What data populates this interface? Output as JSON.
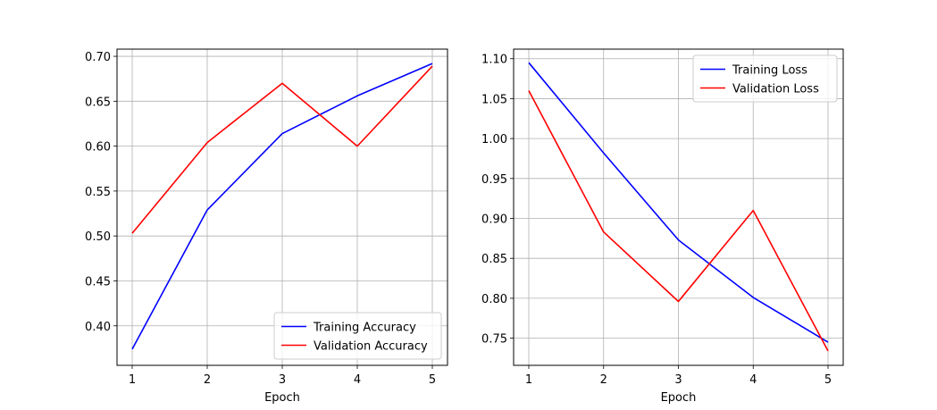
{
  "chart_data": [
    {
      "type": "line",
      "x": [
        1,
        2,
        3,
        4,
        5
      ],
      "xlabel": "Epoch",
      "ylabel": "",
      "title": "",
      "ylim": [
        0.356,
        0.708
      ],
      "xticks": [
        "1",
        "2",
        "3",
        "4",
        "5"
      ],
      "yticks": [
        "0.40",
        "0.45",
        "0.50",
        "0.55",
        "0.60",
        "0.65",
        "0.70"
      ],
      "grid": true,
      "legend_position": "lower-right",
      "series": [
        {
          "name": "Training Accuracy",
          "color": "#0000ff",
          "values": [
            0.374,
            0.529,
            0.614,
            0.656,
            0.692
          ]
        },
        {
          "name": "Validation Accuracy",
          "color": "#ff0000",
          "values": [
            0.503,
            0.604,
            0.67,
            0.6,
            0.689
          ]
        }
      ]
    },
    {
      "type": "line",
      "x": [
        1,
        2,
        3,
        4,
        5
      ],
      "xlabel": "Epoch",
      "ylabel": "",
      "title": "",
      "ylim": [
        0.716,
        1.112
      ],
      "xticks": [
        "1",
        "2",
        "3",
        "4",
        "5"
      ],
      "yticks": [
        "0.75",
        "0.80",
        "0.85",
        "0.90",
        "0.95",
        "1.00",
        "1.05",
        "1.10"
      ],
      "grid": true,
      "legend_position": "upper-right",
      "series": [
        {
          "name": "Training Loss",
          "color": "#0000ff",
          "values": [
            1.095,
            0.982,
            0.873,
            0.801,
            0.745
          ]
        },
        {
          "name": "Validation Loss",
          "color": "#ff0000",
          "values": [
            1.06,
            0.883,
            0.796,
            0.91,
            0.734
          ]
        }
      ]
    }
  ]
}
